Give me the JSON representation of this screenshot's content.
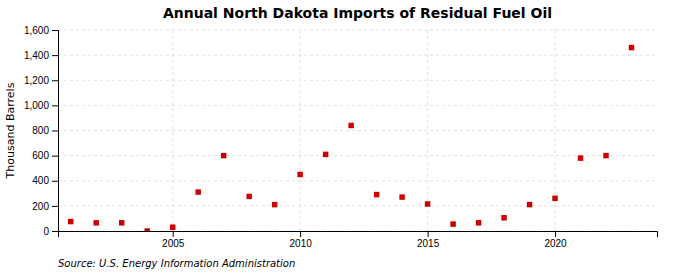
{
  "chart_data": {
    "type": "scatter",
    "title": "Annual North Dakota Imports of Residual Fuel Oil",
    "ylabel": "Thousand Barrels",
    "source": "Source: U.S. Energy Information Administration",
    "x": [
      2001,
      2002,
      2003,
      2004,
      2005,
      2006,
      2007,
      2008,
      2009,
      2010,
      2011,
      2012,
      2013,
      2014,
      2015,
      2016,
      2017,
      2018,
      2019,
      2020,
      2021,
      2022,
      2023
    ],
    "values": [
      75,
      65,
      65,
      0,
      30,
      310,
      600,
      275,
      210,
      450,
      610,
      840,
      290,
      270,
      215,
      55,
      65,
      105,
      210,
      260,
      580,
      600,
      1460
    ],
    "color": "#cc0000",
    "marker": "square",
    "xlim": [
      2000.5,
      2024
    ],
    "xticks": [
      2005,
      2010,
      2015,
      2020
    ],
    "ylim": [
      0,
      1600
    ],
    "yticks": [
      0,
      200,
      400,
      600,
      800,
      {
        "value": 1000,
        "label": "1,000"
      },
      {
        "value": 1200,
        "label": "1,200"
      },
      {
        "value": 1400,
        "label": "1,400"
      },
      {
        "value": 1600,
        "label": "1,600"
      }
    ],
    "grid": true
  }
}
